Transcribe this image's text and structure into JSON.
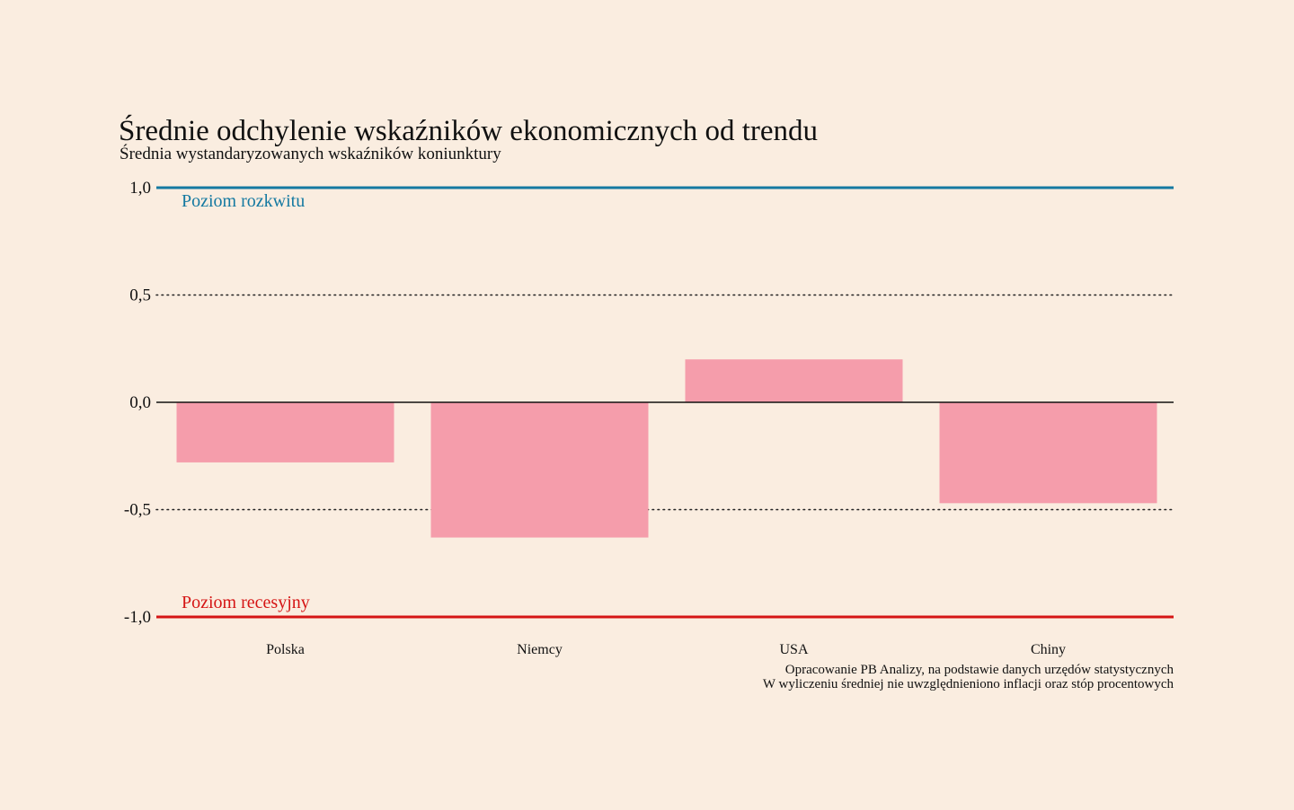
{
  "chart_data": {
    "type": "bar",
    "title": "Średnie odchylenie wskaźników ekonomicznych od trendu",
    "subtitle": "Średnia wystandaryzowanych wskaźników koniunktury",
    "categories": [
      "Polska",
      "Niemcy",
      "USA",
      "Chiny"
    ],
    "values": [
      -0.28,
      -0.63,
      0.2,
      -0.47
    ],
    "ylim": [
      -1.0,
      1.0
    ],
    "yticks": [
      1.0,
      0.5,
      0.0,
      -0.5,
      -1.0
    ],
    "ytick_labels": [
      "1,0",
      "0,5",
      "0,0",
      "-0,5",
      "-1,0"
    ],
    "grid": "dotted at ±0,5",
    "bar_color": "#F59DAB",
    "reference_lines": [
      {
        "value": 1.0,
        "label": "Poziom rozkwitu",
        "color": "#1479A1"
      },
      {
        "value": -1.0,
        "label": "Poziom recesyjny",
        "color": "#D51515"
      }
    ],
    "notes": [
      "Opracowanie PB Analizy, na podstawie danych urzędów statystycznych",
      "W wyliczeniu średniej nie uwzględnieniono inflacji oraz stóp procentowych"
    ]
  }
}
